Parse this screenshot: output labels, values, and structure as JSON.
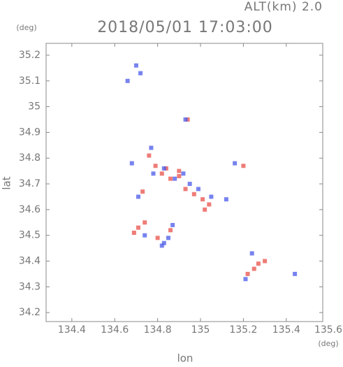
{
  "chart_data": {
    "type": "scatter",
    "title": "2018/05/01 17:03:00",
    "subtitle": "ALT(km) 2.0",
    "x_label": "lon",
    "y_label": "lat",
    "x_unit": "(deg)",
    "y_unit": "(deg)",
    "xlim": [
      134.28,
      135.57
    ],
    "ylim": [
      34.165,
      35.246
    ],
    "xticks": [
      134.4,
      134.6,
      134.8,
      135.0,
      135.2,
      135.4,
      135.6
    ],
    "yticks": [
      34.2,
      34.3,
      34.4,
      34.5,
      34.6,
      34.7,
      34.8,
      34.9,
      35.0,
      35.1,
      35.2
    ],
    "series": [
      {
        "color": "#e8504a",
        "x": [
          134.94,
          134.76,
          134.79,
          134.82,
          134.86,
          134.9,
          134.93,
          134.97,
          135.01,
          135.04,
          135.02,
          134.71,
          134.69,
          134.74,
          134.8,
          134.86,
          135.27,
          135.3,
          135.25,
          135.22,
          135.2,
          134.9,
          134.73,
          134.84
        ],
        "y": [
          34.95,
          34.81,
          34.77,
          34.74,
          34.72,
          34.75,
          34.68,
          34.66,
          34.64,
          34.62,
          34.6,
          34.53,
          34.51,
          34.55,
          34.49,
          34.52,
          34.39,
          34.4,
          34.37,
          34.35,
          34.77,
          34.73,
          34.67,
          34.76
        ]
      },
      {
        "color": "#4a5ae8",
        "x": [
          134.7,
          134.72,
          134.66,
          134.93,
          134.77,
          134.78,
          134.83,
          134.88,
          134.92,
          134.95,
          134.99,
          135.05,
          134.68,
          134.74,
          134.85,
          134.87,
          134.83,
          135.24,
          135.21,
          135.44,
          135.12,
          134.71,
          134.82,
          135.16
        ],
        "y": [
          35.16,
          35.13,
          35.1,
          34.95,
          34.84,
          34.74,
          34.76,
          34.72,
          34.74,
          34.7,
          34.68,
          34.65,
          34.78,
          34.5,
          34.49,
          34.54,
          34.47,
          34.43,
          34.33,
          34.35,
          34.64,
          34.65,
          34.46,
          34.78
        ]
      }
    ]
  }
}
